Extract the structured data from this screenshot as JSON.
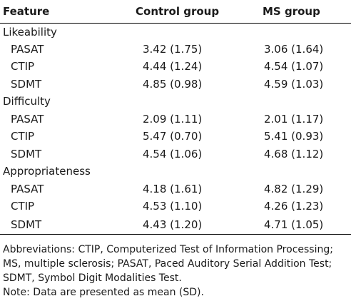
{
  "table": {
    "headers": [
      "Feature",
      "Control group",
      "MS group"
    ],
    "groups": [
      {
        "label": "Likeability",
        "rows": [
          {
            "name": "PASAT",
            "control": "3.42 (1.75)",
            "ms": "3.06 (1.64)"
          },
          {
            "name": "CTIP",
            "control": "4.44 (1.24)",
            "ms": "4.54 (1.07)"
          },
          {
            "name": "SDMT",
            "control": "4.85 (0.98)",
            "ms": "4.59 (1.03)"
          }
        ]
      },
      {
        "label": "Difficulty",
        "rows": [
          {
            "name": "PASAT",
            "control": "2.09 (1.11)",
            "ms": "2.01 (1.17)"
          },
          {
            "name": "CTIP",
            "control": "5.47 (0.70)",
            "ms": "5.41 (0.93)"
          },
          {
            "name": "SDMT",
            "control": "4.54 (1.06)",
            "ms": "4.68 (1.12)"
          }
        ]
      },
      {
        "label": "Appropriateness",
        "rows": [
          {
            "name": "PASAT",
            "control": "4.18 (1.61)",
            "ms": "4.82 (1.29)"
          },
          {
            "name": "CTIP",
            "control": "4.53 (1.10)",
            "ms": "4.26 (1.23)"
          },
          {
            "name": "SDMT",
            "control": "4.43 (1.20)",
            "ms": "4.71 (1.05)"
          }
        ]
      }
    ]
  },
  "footnote": {
    "lines": [
      "Abbreviations: CTIP, Computerized Test of Information Processing;",
      "MS, multiple sclerosis; PASAT, Paced Auditory Serial Addition Test;",
      "SDMT, Symbol Digit Modalities Test.",
      "Note: Data are presented as mean (SD)."
    ]
  }
}
